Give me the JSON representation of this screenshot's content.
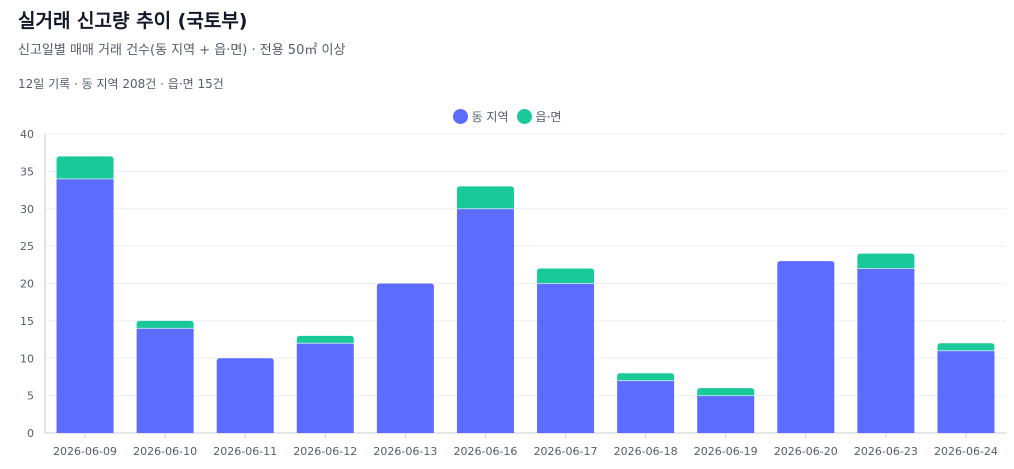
{
  "header": {
    "title": "실거래 신고량 추이 (국토부)",
    "subtitle": "신고일별 매매 거래 건수(동 지역 + 읍·면) · 전용 50㎡ 이상",
    "summary": "12일 기록 · 동 지역 208건 · 읍·면 15건"
  },
  "chart_data": {
    "type": "bar",
    "stacked": true,
    "categories": [
      "2026-06-09",
      "2026-06-10",
      "2026-06-11",
      "2026-06-12",
      "2026-06-13",
      "2026-06-16",
      "2026-06-17",
      "2026-06-18",
      "2026-06-19",
      "2026-06-20",
      "2026-06-23",
      "2026-06-24"
    ],
    "series": [
      {
        "name": "동 지역",
        "color": "#5b6cff",
        "values": [
          34,
          14,
          10,
          12,
          20,
          30,
          20,
          7,
          5,
          23,
          22,
          11
        ]
      },
      {
        "name": "읍·면",
        "color": "#19c99a",
        "values": [
          3,
          1,
          0,
          1,
          0,
          3,
          2,
          1,
          1,
          0,
          2,
          1
        ]
      }
    ],
    "ylim": [
      0,
      40
    ],
    "yticks": [
      0,
      5,
      10,
      15,
      20,
      25,
      30,
      35,
      40
    ],
    "grid": true,
    "legend_position": "top-center"
  }
}
